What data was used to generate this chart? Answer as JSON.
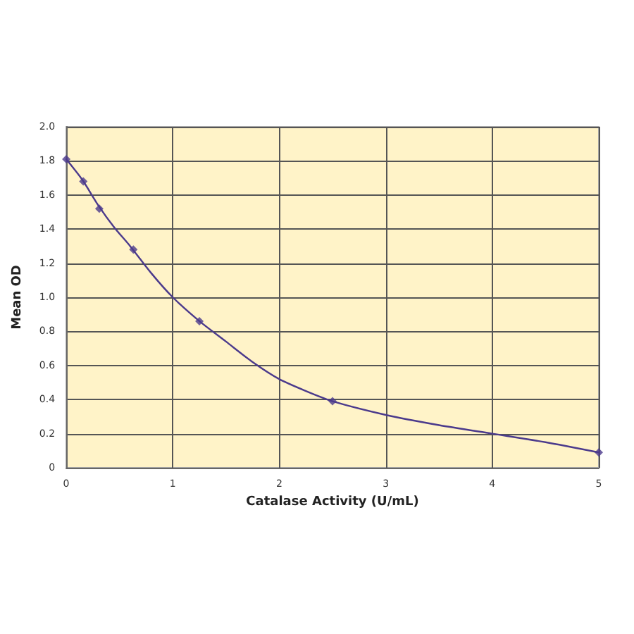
{
  "chart_data": {
    "type": "line",
    "xlabel": "Catalase Activity (U/mL)",
    "ylabel": "Mean OD",
    "x": [
      0,
      0.16,
      0.31,
      0.63,
      1.25,
      2.5,
      5
    ],
    "series": [
      {
        "color": "#4b3a8c",
        "marker": "none",
        "line_style": "solid",
        "x": [
          0,
          0.15,
          0.3,
          0.45,
          0.6,
          0.8,
          1,
          1.25,
          1.5,
          1.75,
          2,
          2.25,
          2.5,
          3,
          3.5,
          4,
          4.5,
          5
        ],
        "values": [
          1.81,
          1.69,
          1.54,
          1.41,
          1.3,
          1.14,
          1,
          0.86,
          0.74,
          0.62,
          0.52,
          0.45,
          0.39,
          0.31,
          0.25,
          0.2,
          0.15,
          0.09
        ]
      },
      {
        "type": "scatter",
        "color": "#4b3a8c",
        "marker": "diamond",
        "values": [
          1.81,
          1.68,
          1.52,
          1.28,
          0.86,
          0.39,
          0.09
        ]
      }
    ],
    "xlim": [
      0,
      5
    ],
    "xticks": [
      0,
      1,
      2,
      3,
      4,
      5
    ],
    "ylim": [
      0,
      2
    ],
    "yticks": [
      0,
      0.2,
      0.4,
      0.6,
      0.8,
      {
        "value": 1,
        "label": "1.0"
      },
      1.2,
      1.4,
      1.6,
      1.8,
      {
        "value": 2,
        "label": "2.0"
      }
    ],
    "grid": true
  }
}
